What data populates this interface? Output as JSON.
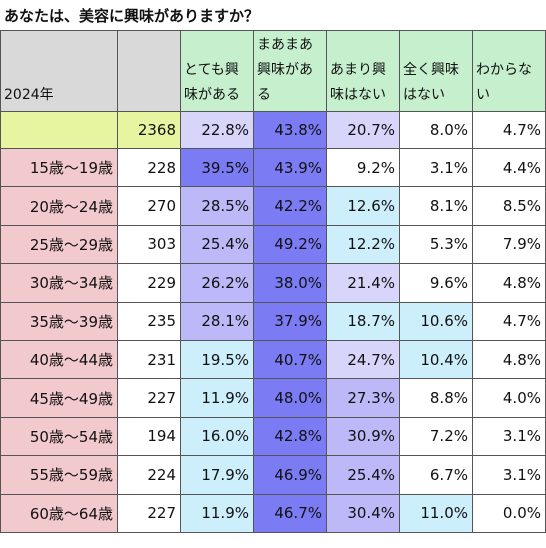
{
  "title": "あなたは、美容に興味がありますか？",
  "table": {
    "year_label": "2024年",
    "n_header": "",
    "headers": [
      "とても興味がある",
      "まあまあ興味がある",
      "あまり興味はない",
      "全く興味はない",
      "わからない"
    ],
    "total": {
      "label": "",
      "n": "2368",
      "values": [
        "22.8%",
        "43.8%",
        "20.7%",
        "8.0%",
        "4.7%"
      ]
    },
    "rows": [
      {
        "age": "15歳～19歳",
        "n": "228",
        "values": [
          "39.5%",
          "43.9%",
          "9.2%",
          "3.1%",
          "4.4%"
        ]
      },
      {
        "age": "20歳～24歳",
        "n": "270",
        "values": [
          "28.5%",
          "42.2%",
          "12.6%",
          "8.1%",
          "8.5%"
        ]
      },
      {
        "age": "25歳～29歳",
        "n": "303",
        "values": [
          "25.4%",
          "49.2%",
          "12.2%",
          "5.3%",
          "7.9%"
        ]
      },
      {
        "age": "30歳～34歳",
        "n": "229",
        "values": [
          "26.2%",
          "38.0%",
          "21.4%",
          "9.6%",
          "4.8%"
        ]
      },
      {
        "age": "35歳～39歳",
        "n": "235",
        "values": [
          "28.1%",
          "37.9%",
          "18.7%",
          "10.6%",
          "4.7%"
        ]
      },
      {
        "age": "40歳～44歳",
        "n": "231",
        "values": [
          "19.5%",
          "40.7%",
          "24.7%",
          "10.4%",
          "4.8%"
        ]
      },
      {
        "age": "45歳～49歳",
        "n": "227",
        "values": [
          "11.9%",
          "48.0%",
          "27.3%",
          "8.8%",
          "4.0%"
        ]
      },
      {
        "age": "50歳～54歳",
        "n": "194",
        "values": [
          "16.0%",
          "42.8%",
          "30.9%",
          "7.2%",
          "3.1%"
        ]
      },
      {
        "age": "55歳～59歳",
        "n": "224",
        "values": [
          "17.9%",
          "46.9%",
          "25.4%",
          "6.7%",
          "3.1%"
        ]
      },
      {
        "age": "60歳～64歳",
        "n": "227",
        "values": [
          "11.9%",
          "46.7%",
          "30.4%",
          "11.0%",
          "0.0%"
        ]
      }
    ]
  },
  "chart_data": {
    "type": "table",
    "title": "あなたは、美容に興味がありますか？",
    "columns": [
      "2024年",
      "",
      "とても興味がある",
      "まあまあ興味がある",
      "あまり興味はない",
      "全く興味はない",
      "わからない"
    ],
    "rows": [
      [
        "",
        2368,
        22.8,
        43.8,
        20.7,
        8.0,
        4.7
      ],
      [
        "15歳～19歳",
        228,
        39.5,
        43.9,
        9.2,
        3.1,
        4.4
      ],
      [
        "20歳～24歳",
        270,
        28.5,
        42.2,
        12.6,
        8.1,
        8.5
      ],
      [
        "25歳～29歳",
        303,
        25.4,
        49.2,
        12.2,
        5.3,
        7.9
      ],
      [
        "30歳～34歳",
        229,
        26.2,
        38.0,
        21.4,
        9.6,
        4.8
      ],
      [
        "35歳～39歳",
        235,
        28.1,
        37.9,
        18.7,
        10.6,
        4.7
      ],
      [
        "40歳～44歳",
        231,
        19.5,
        40.7,
        24.7,
        10.4,
        4.8
      ],
      [
        "45歳～49歳",
        227,
        11.9,
        48.0,
        27.3,
        8.8,
        4.0
      ],
      [
        "50歳～54歳",
        194,
        16.0,
        42.8,
        30.9,
        7.2,
        3.1
      ],
      [
        "55歳～59歳",
        224,
        17.9,
        46.9,
        25.4,
        6.7,
        3.1
      ],
      [
        "60歳～64歳",
        227,
        11.9,
        46.7,
        30.4,
        11.0,
        0.0
      ]
    ]
  }
}
